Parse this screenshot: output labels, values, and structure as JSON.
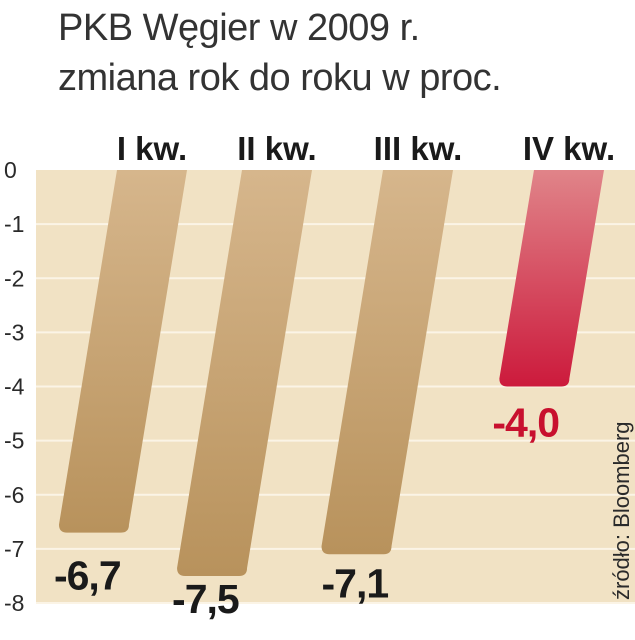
{
  "chart_data": {
    "type": "bar",
    "title": "PKB Węgier w 2009 r.",
    "subtitle": "zmiana rok do roku w proc.",
    "categories": [
      "I kw.",
      "II kw.",
      "III kw.",
      "IV kw."
    ],
    "values": [
      -6.7,
      -7.5,
      -7.1,
      -4.0
    ],
    "value_labels": [
      "-6,7",
      "-7,5",
      "-7,1",
      "-4,0"
    ],
    "ylim": [
      -8,
      0
    ],
    "yticks": [
      0,
      -1,
      -2,
      -3,
      -4,
      -5,
      -6,
      -7,
      -8
    ],
    "ytick_labels": [
      "0",
      "-1",
      "-2",
      "-3",
      "-4",
      "-5",
      "-6",
      "-7",
      "-8"
    ],
    "grid": true,
    "source": "źródło: Bloomberg",
    "colors": {
      "bar": "#b8925c",
      "bar_light": "#d6b68c",
      "highlight_bar": "#cc1a3c",
      "highlight_bar_light": "#e08489",
      "highlight_label": "#c8102e",
      "label": "#1a1a1a",
      "plot_background": "#f1e2c4",
      "grid": "#fbf4e6"
    },
    "highlight_index": 3
  }
}
